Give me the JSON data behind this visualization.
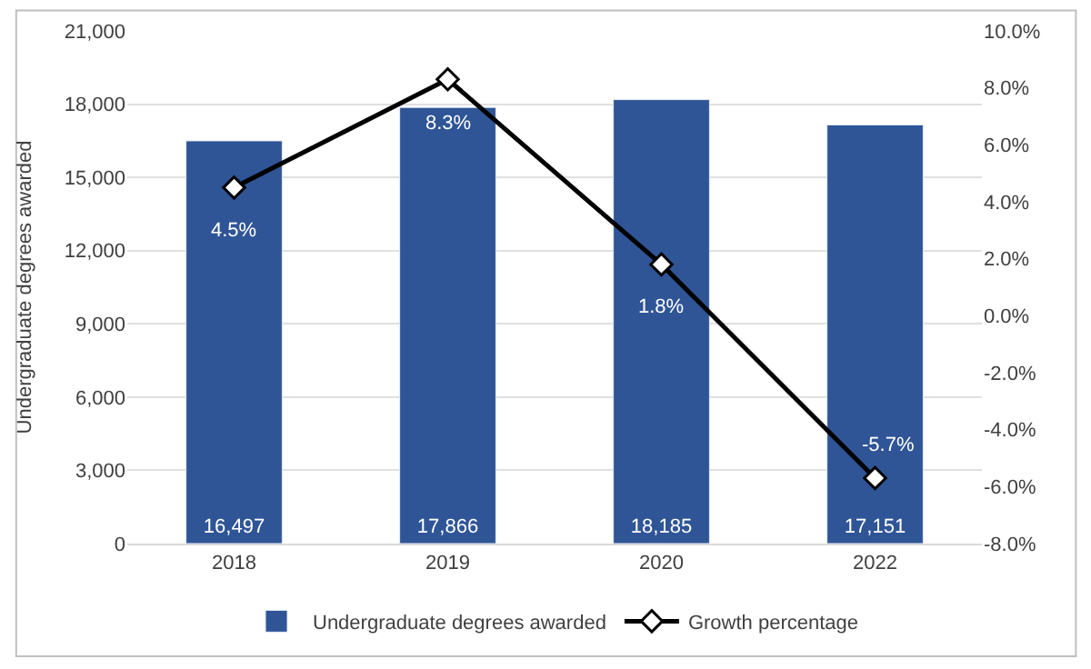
{
  "chart_data": {
    "type": "bar",
    "ylabel": "Undergraduate degrees awarded",
    "categories": [
      "2018",
      "2019",
      "2020",
      "2022"
    ],
    "series": [
      {
        "name": "Undergraduate degrees awarded",
        "color": "#2f5597",
        "values": [
          16497,
          17866,
          18185,
          17151
        ],
        "value_labels": [
          "16,497",
          "17,866",
          "18,185",
          "17,151"
        ]
      },
      {
        "name": "Growth percentage",
        "type": "line",
        "axis": "y2",
        "color": "#000000",
        "marker": "diamond",
        "values": [
          4.5,
          8.3,
          1.8,
          -5.7
        ],
        "value_labels": [
          "4.5%",
          "8.3%",
          "1.8%",
          "-5.7%"
        ]
      }
    ],
    "ylim": [
      0,
      21000
    ],
    "yticks": [
      {
        "value": 0,
        "label": "0"
      },
      {
        "value": 3000,
        "label": "3,000"
      },
      {
        "value": 6000,
        "label": "6,000"
      },
      {
        "value": 9000,
        "label": "9,000"
      },
      {
        "value": 12000,
        "label": "12,000"
      },
      {
        "value": 15000,
        "label": "15,000"
      },
      {
        "value": 18000,
        "label": "18,000"
      },
      {
        "value": 21000,
        "label": "21,000"
      }
    ],
    "y2lim": [
      -8,
      10
    ],
    "y2ticks": [
      {
        "value": -8,
        "label": "-8.0%"
      },
      {
        "value": -6,
        "label": "-6.0%"
      },
      {
        "value": -4,
        "label": "-4.0%"
      },
      {
        "value": -2,
        "label": "-2.0%"
      },
      {
        "value": 0,
        "label": "0.0%"
      },
      {
        "value": 2,
        "label": "2.0%"
      },
      {
        "value": 4,
        "label": "4.0%"
      },
      {
        "value": 6,
        "label": "6.0%"
      },
      {
        "value": 8,
        "label": "8.0%"
      },
      {
        "value": 10,
        "label": "10.0%"
      }
    ],
    "grid": "y",
    "legend": "bottom"
  }
}
